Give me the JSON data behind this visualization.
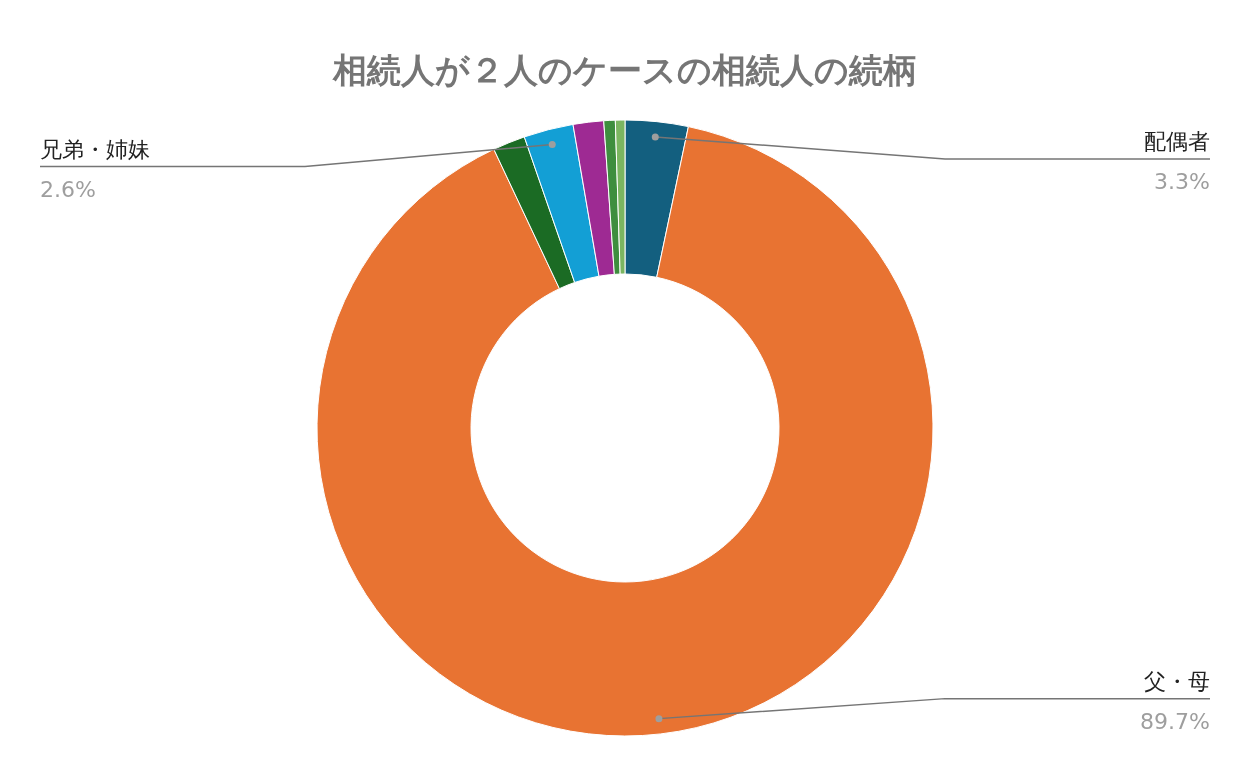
{
  "chart_data": {
    "type": "donut",
    "title": "相続人が２人のケースの相続人の続柄",
    "categories": [
      "配偶者",
      "父・母",
      null,
      "兄弟・姉妹",
      null,
      null,
      null
    ],
    "values": [
      3.3,
      89.7,
      1.7,
      2.6,
      1.6,
      0.6,
      0.5
    ],
    "colors": [
      "#135f7f",
      "#e87332",
      "#1b6b24",
      "#139fd5",
      "#9e2a93",
      "#3e8e3e",
      "#7bb661"
    ],
    "value_labels": [
      "3.3%",
      "89.7%",
      null,
      "2.6%",
      null,
      null,
      null
    ]
  }
}
